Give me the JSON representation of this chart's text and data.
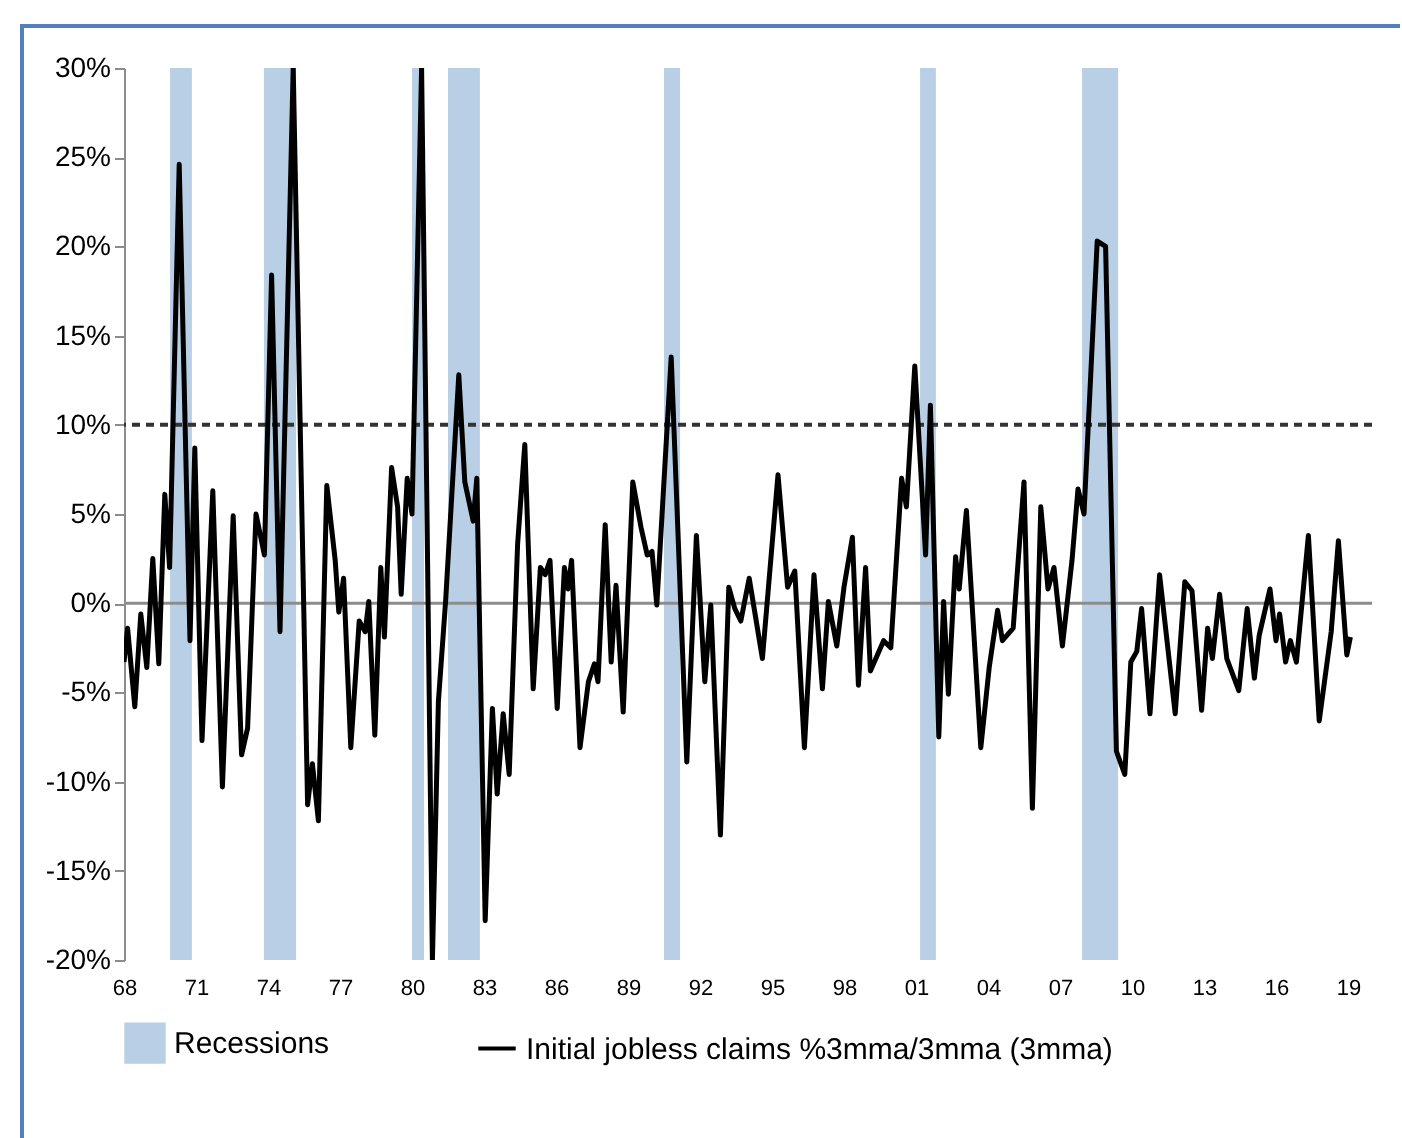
{
  "chart_data": {
    "type": "line",
    "legend": "bottom",
    "line_style": "solid",
    "marker": "none",
    "grid": false,
    "xlim": [
      1968,
      2020
    ],
    "xticks": [
      {
        "value": 1968,
        "label": "68"
      },
      {
        "value": 1971,
        "label": "71"
      },
      {
        "value": 1974,
        "label": "74"
      },
      {
        "value": 1977,
        "label": "77"
      },
      {
        "value": 1980,
        "label": "80"
      },
      {
        "value": 1983,
        "label": "83"
      },
      {
        "value": 1986,
        "label": "86"
      },
      {
        "value": 1989,
        "label": "89"
      },
      {
        "value": 1992,
        "label": "92"
      },
      {
        "value": 1995,
        "label": "95"
      },
      {
        "value": 1998,
        "label": "98"
      },
      {
        "value": 2001,
        "label": "01"
      },
      {
        "value": 2004,
        "label": "04"
      },
      {
        "value": 2007,
        "label": "07"
      },
      {
        "value": 2010,
        "label": "10"
      },
      {
        "value": 2013,
        "label": "13"
      },
      {
        "value": 2016,
        "label": "16"
      },
      {
        "value": 2019,
        "label": "19"
      }
    ],
    "ylim": [
      -20,
      30
    ],
    "yticks": [
      {
        "value": -20,
        "label": "-20%"
      },
      {
        "value": -15,
        "label": "-15%"
      },
      {
        "value": -10,
        "label": "-10%"
      },
      {
        "value": -5,
        "label": "-5%"
      },
      {
        "value": 0,
        "label": "0%"
      },
      {
        "value": 5,
        "label": "5%"
      },
      {
        "value": 10,
        "label": "10%"
      },
      {
        "value": 15,
        "label": "15%"
      },
      {
        "value": 20,
        "label": "20%"
      },
      {
        "value": 25,
        "label": "25%"
      },
      {
        "value": 30,
        "label": "30%"
      }
    ],
    "ref_lines": [
      {
        "axis": "y",
        "value": 10,
        "color": "#333333",
        "line_style": "dashed"
      },
      {
        "axis": "y",
        "value": 0,
        "color": "#8c8c8c",
        "line_style": "solid"
      }
    ],
    "bands": [
      {
        "axis": "x",
        "from": 1969.92,
        "to": 1970.83,
        "label": "Recessions",
        "color": "#b8cfe5"
      },
      {
        "axis": "x",
        "from": 1973.83,
        "to": 1975.17,
        "color": "#b8cfe5"
      },
      {
        "axis": "x",
        "from": 1980.0,
        "to": 1980.5,
        "color": "#b8cfe5"
      },
      {
        "axis": "x",
        "from": 1981.5,
        "to": 1982.83,
        "color": "#b8cfe5"
      },
      {
        "axis": "x",
        "from": 1990.5,
        "to": 1991.17,
        "color": "#b8cfe5"
      },
      {
        "axis": "x",
        "from": 2001.17,
        "to": 2001.83,
        "color": "#b8cfe5"
      },
      {
        "axis": "x",
        "from": 2007.92,
        "to": 2009.42,
        "color": "#b8cfe5"
      }
    ],
    "x": [
      1968.0,
      1968.15,
      1968.45,
      1968.7,
      1968.95,
      1969.2,
      1969.45,
      1969.7,
      1969.9,
      1970.3,
      1970.75,
      1970.95,
      1971.25,
      1971.7,
      1972.1,
      1972.55,
      1972.9,
      1973.15,
      1973.5,
      1973.85,
      1974.15,
      1974.5,
      1975.05,
      1975.65,
      1975.85,
      1976.1,
      1976.45,
      1976.8,
      1976.95,
      1977.15,
      1977.45,
      1977.8,
      1978.05,
      1978.2,
      1978.45,
      1978.7,
      1978.85,
      1979.15,
      1979.4,
      1979.55,
      1979.8,
      1980.0,
      1980.4,
      1980.85,
      1981.1,
      1981.4,
      1981.95,
      1982.2,
      1982.55,
      1982.7,
      1983.05,
      1983.35,
      1983.55,
      1983.8,
      1984.05,
      1984.4,
      1984.7,
      1985.05,
      1985.35,
      1985.55,
      1985.75,
      1986.05,
      1986.35,
      1986.5,
      1986.65,
      1987.0,
      1987.35,
      1987.6,
      1987.75,
      1988.05,
      1988.3,
      1988.5,
      1988.8,
      1989.2,
      1989.55,
      1989.8,
      1990.0,
      1990.2,
      1990.8,
      1991.45,
      1991.85,
      1992.2,
      1992.45,
      1992.85,
      1993.2,
      1993.45,
      1993.7,
      1994.05,
      1994.6,
      1995.25,
      1995.65,
      1995.95,
      1996.35,
      1996.75,
      1997.1,
      1997.35,
      1997.7,
      1998.0,
      1998.35,
      1998.6,
      1998.9,
      1999.1,
      1999.65,
      1999.95,
      2000.4,
      2000.6,
      2000.95,
      2001.4,
      2001.6,
      2001.95,
      2002.15,
      2002.35,
      2002.65,
      2002.8,
      2003.1,
      2003.7,
      2004.05,
      2004.4,
      2004.6,
      2005.05,
      2005.5,
      2005.85,
      2006.2,
      2006.5,
      2006.75,
      2007.1,
      2007.5,
      2007.75,
      2008.0,
      2008.55,
      2008.9,
      2009.35,
      2009.7,
      2009.95,
      2010.2,
      2010.4,
      2010.75,
      2011.15,
      2011.8,
      2012.2,
      2012.5,
      2012.9,
      2013.15,
      2013.35,
      2013.65,
      2013.95,
      2014.45,
      2014.8,
      2015.1,
      2015.3,
      2015.75,
      2016.0,
      2016.15,
      2016.4,
      2016.6,
      2016.85,
      2017.35,
      2017.8,
      2018.3,
      2018.6,
      2018.95,
      2019.1
    ],
    "series": [
      {
        "name": "Initial jobless claims %3mma/3mma (3mma)",
        "color": "#000000",
        "values": [
          -3.3,
          -1.4,
          -5.8,
          -0.6,
          -3.6,
          2.5,
          -3.4,
          6.1,
          2.0,
          24.6,
          -2.1,
          8.7,
          -7.7,
          6.3,
          -10.3,
          4.9,
          -8.5,
          -7.0,
          5.0,
          2.7,
          18.4,
          -1.6,
          30,
          -11.3,
          -9.0,
          -12.2,
          6.6,
          2.4,
          -0.5,
          1.4,
          -8.1,
          -1.0,
          -1.6,
          0.1,
          -7.4,
          2.0,
          -1.9,
          7.6,
          5.4,
          0.5,
          7.0,
          5.0,
          30,
          -20,
          -5.5,
          0.1,
          12.8,
          6.8,
          4.6,
          7.0,
          -17.8,
          -5.9,
          -10.7,
          -6.2,
          -9.6,
          3.3,
          8.9,
          -4.8,
          2.0,
          1.6,
          2.4,
          -5.9,
          2.0,
          0.8,
          2.4,
          -8.1,
          -4.4,
          -3.4,
          -4.4,
          4.4,
          -3.3,
          1.0,
          -6.1,
          6.8,
          4.2,
          2.7,
          2.9,
          -0.1,
          13.8,
          -8.9,
          3.8,
          -4.4,
          -0.1,
          -13.0,
          0.9,
          -0.3,
          -1.0,
          1.4,
          -3.1,
          7.2,
          0.9,
          1.8,
          -8.1,
          1.6,
          -4.8,
          0.1,
          -2.4,
          0.9,
          3.7,
          -4.6,
          2.0,
          -3.8,
          -2.1,
          -2.5,
          7.0,
          5.4,
          13.3,
          2.7,
          11.1,
          -7.5,
          0.1,
          -5.1,
          2.6,
          0.8,
          5.2,
          -8.1,
          -3.6,
          -0.4,
          -2.1,
          -1.4,
          6.8,
          -11.5,
          5.4,
          0.8,
          2.0,
          -2.4,
          2.4,
          6.4,
          5.0,
          20.3,
          20.0,
          -8.3,
          -9.6,
          -3.3,
          -2.7,
          -0.3,
          -6.2,
          1.6,
          -6.2,
          1.2,
          0.7,
          -6.0,
          -1.4,
          -3.1,
          0.5,
          -3.1,
          -4.9,
          -0.3,
          -4.2,
          -1.8,
          0.8,
          -2.1,
          -0.6,
          -3.3,
          -2.1,
          -3.3,
          3.8,
          -6.6,
          -1.6,
          3.5,
          -2.9,
          -1.9
        ]
      }
    ]
  }
}
